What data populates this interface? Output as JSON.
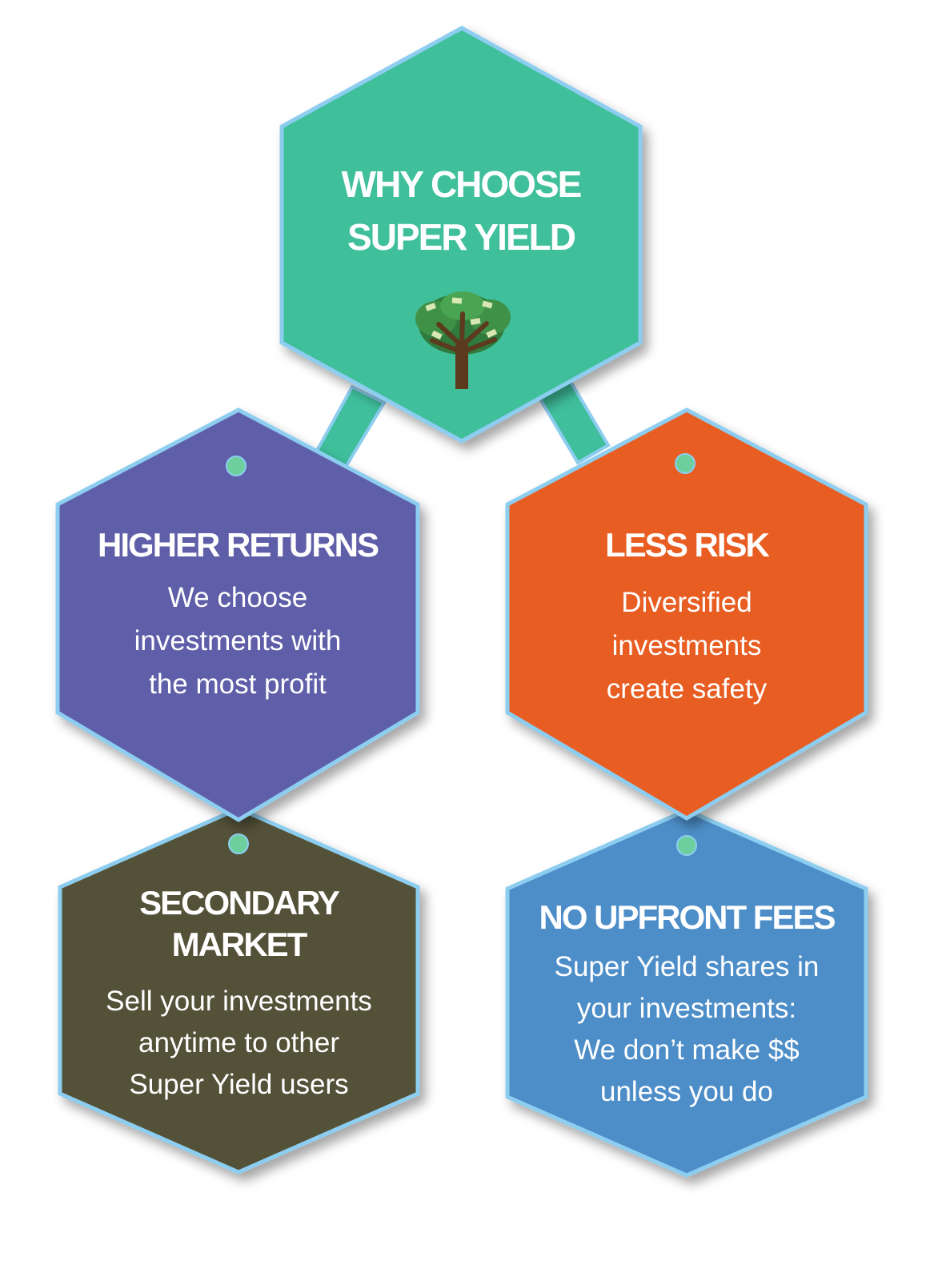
{
  "colors": {
    "border": "#8ccdf0",
    "center": "#3fbf9b",
    "connector": "#3fbf9b",
    "pin": "#6ecf9e",
    "higher_returns": "#5f5fa9",
    "less_risk": "#e85d22",
    "secondary_market": "#535138",
    "no_upfront_fees": "#4e8ec9",
    "text": "#ffffff"
  },
  "center": {
    "title_lines": [
      "WHY CHOOSE",
      "SUPER YIELD"
    ],
    "icon": "money-tree-icon"
  },
  "higher_returns": {
    "heading": "HIGHER RETURNS",
    "body_lines": [
      "We choose",
      "investments with",
      "the most profit"
    ]
  },
  "less_risk": {
    "heading": "LESS RISK",
    "body_lines": [
      "Diversified",
      "investments",
      "create safety"
    ]
  },
  "secondary_market": {
    "heading_lines": [
      "SECONDARY",
      "MARKET"
    ],
    "body_lines": [
      "Sell your investments",
      "anytime to other",
      "Super Yield users"
    ]
  },
  "no_upfront_fees": {
    "heading": "NO UPFRONT FEES",
    "body_lines": [
      "Super Yield shares in",
      "your investments:",
      "We don’t make $$",
      "unless you do"
    ]
  }
}
